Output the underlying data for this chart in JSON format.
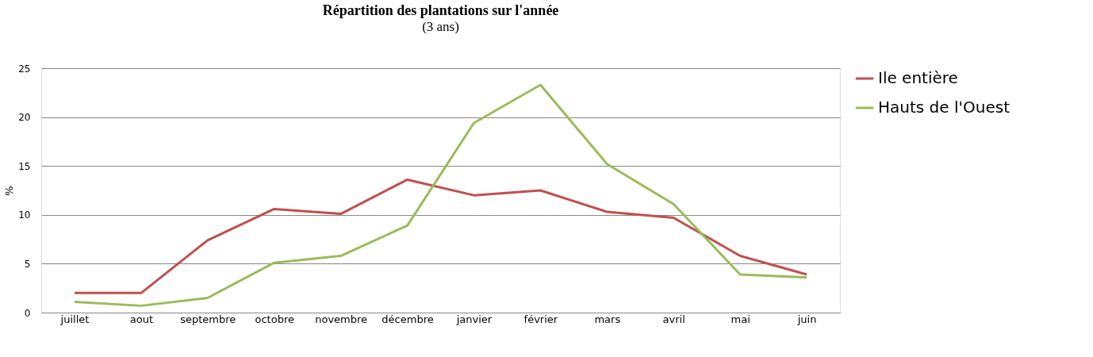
{
  "chart_data": {
    "type": "line",
    "title": "Répartition des plantations sur l'année",
    "subtitle": "(3 ans)",
    "ylabel": "%",
    "categories": [
      "juillet",
      "aout",
      "septembre",
      "octobre",
      "novembre",
      "décembre",
      "janvier",
      "février",
      "mars",
      "avril",
      "mai",
      "juin"
    ],
    "series": [
      {
        "name": "Ile entière",
        "color": "#c0504d",
        "values": [
          2.0,
          2.0,
          7.4,
          10.6,
          10.1,
          13.6,
          12.0,
          12.5,
          10.3,
          9.7,
          5.8,
          3.9
        ]
      },
      {
        "name": "Hauts de l'Ouest",
        "color": "#9bbb59",
        "values": [
          1.1,
          0.7,
          1.5,
          5.1,
          5.8,
          8.9,
          19.4,
          23.3,
          15.2,
          11.1,
          3.9,
          3.6
        ]
      }
    ],
    "ylim": [
      0,
      25
    ],
    "yticks": [
      0,
      5,
      10,
      15,
      20,
      25
    ],
    "grid": "y",
    "legend": "right"
  }
}
